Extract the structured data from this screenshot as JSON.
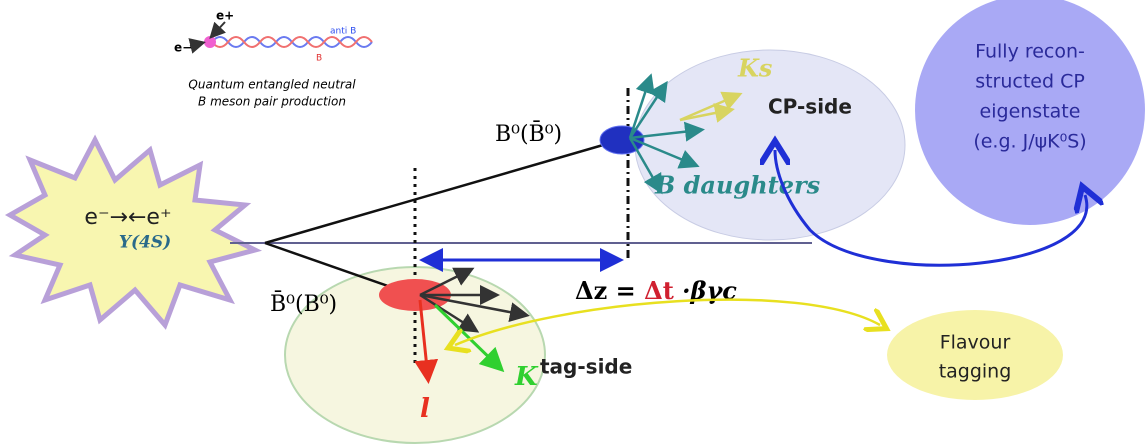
{
  "production": {
    "positron": "e+",
    "electron": "e−",
    "anti_b": "anti B",
    "b": "B",
    "caption_line1": "Quantum entangled neutral",
    "caption_line2": "B meson pair production"
  },
  "source": {
    "beams": "e⁻→←e⁺",
    "resonance": "Υ(4S)"
  },
  "cp_side": {
    "b_label": "B⁰(B̄⁰)",
    "title": "CP-side",
    "ks": "Ks",
    "daughters": "B daughters"
  },
  "tag_side": {
    "b_label": "B̄⁰(B⁰)",
    "title": "tag-side",
    "kaon": "K",
    "lepton": "l"
  },
  "formula": {
    "dz": "Δz =",
    "dt": "Δt",
    "rest": "·βγc"
  },
  "cp_eigenstate": {
    "lines": [
      "Fully recon-",
      "structed CP",
      "eigenstate",
      "(e.g. J/ψK⁰S)"
    ]
  },
  "flavour_tagging": {
    "lines": [
      "Flavour",
      "tagging"
    ]
  }
}
